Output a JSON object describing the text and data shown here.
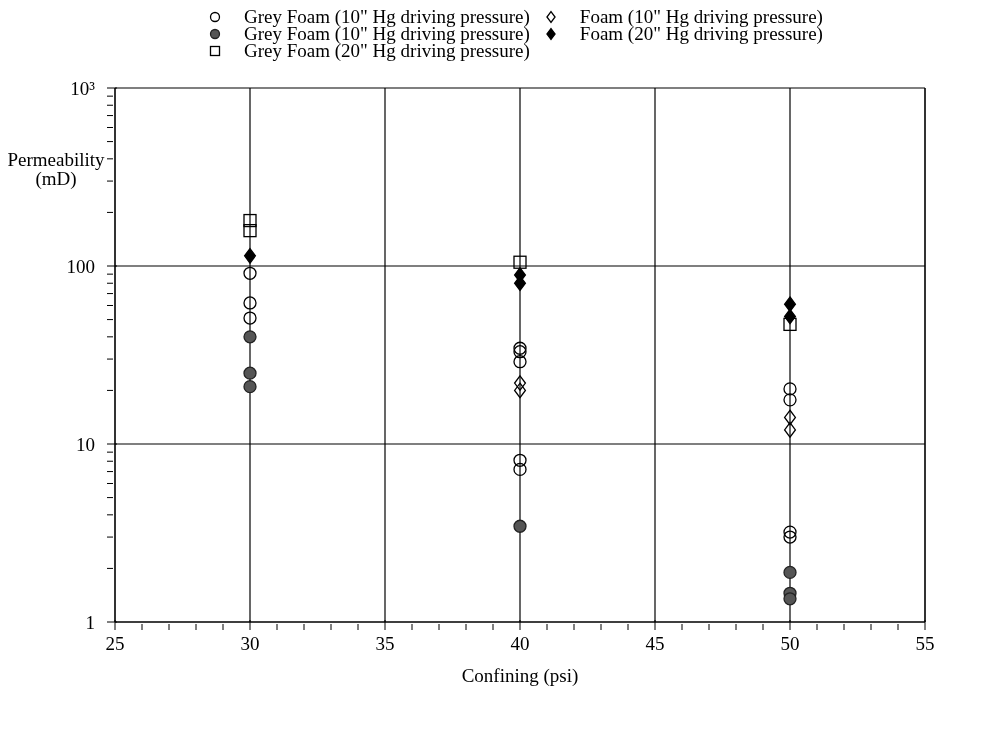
{
  "chart_data": {
    "type": "scatter",
    "xlabel": "Confining (psi)",
    "ylabel": "Permeability\n(mD)",
    "log": "y",
    "grid": true,
    "legend": "top",
    "xlim": [
      25,
      55
    ],
    "ylim": [
      1,
      1000
    ],
    "xticks": [
      25,
      {
        "value": 26,
        "label": null
      },
      {
        "value": 27,
        "label": null
      },
      {
        "value": 28,
        "label": null
      },
      {
        "value": 29,
        "label": null
      },
      30,
      {
        "value": 31,
        "label": null
      },
      {
        "value": 32,
        "label": null
      },
      {
        "value": 33,
        "label": null
      },
      {
        "value": 34,
        "label": null
      },
      35,
      {
        "value": 36,
        "label": null
      },
      {
        "value": 37,
        "label": null
      },
      {
        "value": 38,
        "label": null
      },
      {
        "value": 39,
        "label": null
      },
      40,
      {
        "value": 41,
        "label": null
      },
      {
        "value": 42,
        "label": null
      },
      {
        "value": 43,
        "label": null
      },
      {
        "value": 44,
        "label": null
      },
      45,
      {
        "value": 46,
        "label": null
      },
      {
        "value": 47,
        "label": null
      },
      {
        "value": 48,
        "label": null
      },
      {
        "value": 49,
        "label": null
      },
      50,
      {
        "value": 51,
        "label": null
      },
      {
        "value": 52,
        "label": null
      },
      {
        "value": 53,
        "label": null
      },
      {
        "value": 54,
        "label": null
      },
      55
    ],
    "yticks": [
      1,
      {
        "value": 2,
        "label": null
      },
      {
        "value": 3,
        "label": null
      },
      {
        "value": 4,
        "label": null
      },
      {
        "value": 5,
        "label": null
      },
      {
        "value": 6,
        "label": null
      },
      {
        "value": 7,
        "label": null
      },
      {
        "value": 8,
        "label": null
      },
      {
        "value": 9,
        "label": null
      },
      10,
      {
        "value": 20,
        "label": null
      },
      {
        "value": 30,
        "label": null
      },
      {
        "value": 40,
        "label": null
      },
      {
        "value": 50,
        "label": null
      },
      {
        "value": 60,
        "label": null
      },
      {
        "value": 70,
        "label": null
      },
      {
        "value": 80,
        "label": null
      },
      {
        "value": 90,
        "label": null
      },
      100,
      {
        "value": 200,
        "label": null
      },
      {
        "value": 300,
        "label": null
      },
      {
        "value": 400,
        "label": null
      },
      {
        "value": 500,
        "label": null
      },
      {
        "value": 600,
        "label": null
      },
      {
        "value": 700,
        "label": null
      },
      {
        "value": 800,
        "label": null
      },
      {
        "value": 900,
        "label": null
      },
      {
        "value": 1000,
        "label": "10³"
      }
    ],
    "series": [
      {
        "name": "Grey Foam (10\" Hg driving pressure)",
        "color": "#000000",
        "marker": "circle",
        "x": [
          30,
          30,
          30,
          40,
          40,
          40,
          40,
          40,
          50,
          50,
          50,
          50
        ],
        "values": [
          91,
          62,
          51,
          34.5,
          33,
          29,
          8.1,
          7.2,
          20.4,
          17.7,
          3.2,
          3.0
        ]
      },
      {
        "name": "Grey Foam (10\" Hg driving pressure)",
        "color": "#555555",
        "marker": "circle",
        "x": [
          30,
          30,
          30,
          40,
          50,
          50,
          50
        ],
        "values": [
          40,
          25,
          21,
          3.45,
          1.9,
          1.45,
          1.35
        ]
      },
      {
        "name": "Grey Foam (20\" Hg driving pressure)",
        "color": "#000000",
        "marker": "square",
        "x": [
          30,
          30,
          40,
          50
        ],
        "values": [
          180,
          158,
          105,
          47
        ]
      },
      {
        "name": "Foam (10\" Hg driving pressure)",
        "color": "#000000",
        "marker": "diamond",
        "x": [
          40,
          40,
          50,
          50
        ],
        "values": [
          22,
          20,
          14.1,
          12
        ]
      },
      {
        "name": "Foam (20\" Hg driving pressure)",
        "color": "#000000",
        "marker": "diamond",
        "x": [
          30,
          40,
          40,
          50,
          50
        ],
        "values": [
          114,
          89,
          80,
          61,
          52
        ]
      }
    ]
  }
}
